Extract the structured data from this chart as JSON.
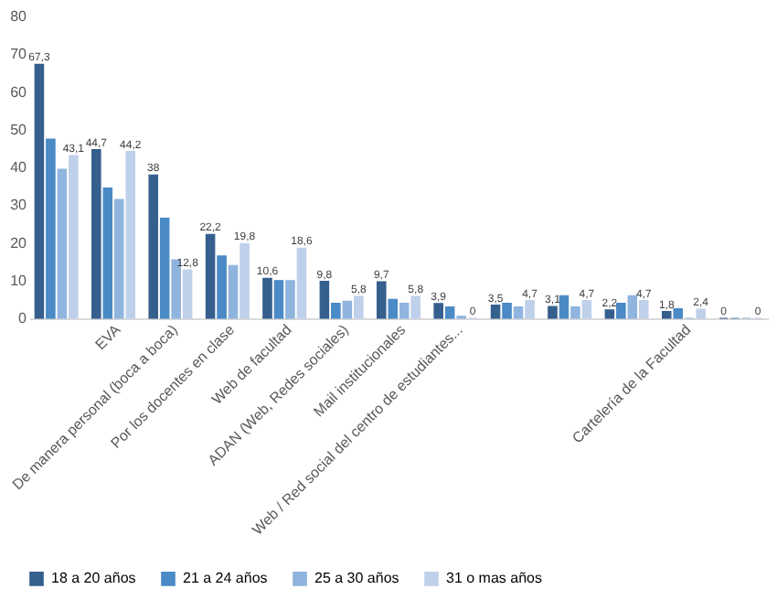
{
  "chart_data": {
    "type": "bar",
    "categories": [
      null,
      "EVA",
      "De manera personal (boca a boca)",
      "Por los docentes en clase",
      "Web de facultad",
      "ADAN (Web, Redes sociales)",
      "Mail institucionales",
      "Web / Red social del centro de estudiantes...",
      null,
      null,
      null,
      "Cartelería de la Facultad",
      null
    ],
    "series": [
      {
        "name": "18 a 20 años",
        "color": "#355f8d",
        "values": [
          67.3,
          44.7,
          38,
          22.2,
          10.6,
          9.8,
          9.7,
          3.9,
          3.5,
          3.1,
          2.2,
          1.8,
          0
        ],
        "value_labels": [
          "67,3",
          "44,7",
          "38",
          "22,2",
          "10,6",
          "9,8",
          "9,7",
          "3,9",
          "3,5",
          "3,1",
          "2,2",
          "1,8",
          "0"
        ]
      },
      {
        "name": "21 a 24 años",
        "color": "#4a8ac6",
        "values": [
          47.5,
          34.5,
          26.5,
          16.5,
          10,
          4,
          5,
          3,
          4,
          6,
          4,
          2.5,
          0
        ]
      },
      {
        "name": "25 a 30 años",
        "color": "#8fb4de",
        "values": [
          39.5,
          31.5,
          15.5,
          14,
          10,
          4.5,
          4,
          0.5,
          3,
          3,
          6,
          0,
          0
        ]
      },
      {
        "name": "31  o mas años",
        "color": "#bfd0ea",
        "values": [
          43.1,
          44.2,
          12.8,
          19.8,
          18.6,
          5.8,
          5.8,
          0,
          4.7,
          4.7,
          4.7,
          2.4,
          0
        ],
        "value_labels": [
          "43,1",
          "44,2",
          "12,8",
          "19,8",
          "18,6",
          "5,8",
          "5,8",
          "0",
          "4,7",
          "4,7",
          "4,7",
          "2,4",
          "0"
        ]
      }
    ],
    "ylim": [
      0,
      80
    ],
    "yticks": [
      0,
      10,
      20,
      30,
      40,
      50,
      60,
      70,
      80
    ],
    "grid": false,
    "legend": "bottom"
  }
}
